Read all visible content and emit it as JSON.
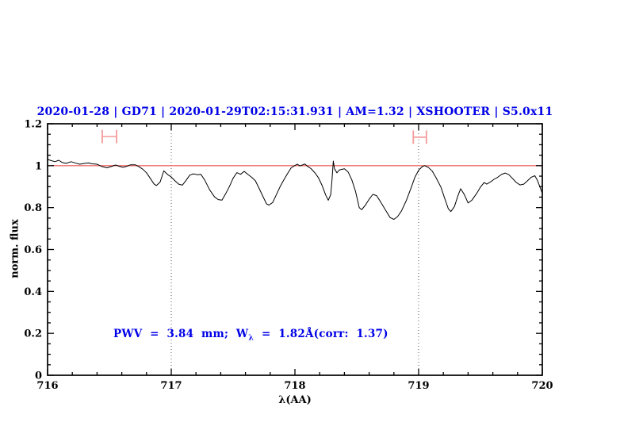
{
  "title": "2020-01-28 | GD71 | 2020-01-29T02:15:31.931 | AM=1.32 | XSHOOTER | S5.0x11",
  "annotation": {
    "prefix": "PWV  =  3.84  mm;  W",
    "sub": "λ",
    "suffix": "  =  1.82Å(corr:  1.37)"
  },
  "colors": {
    "title_blue": "#0000e8",
    "annotation_blue": "#0000e8",
    "continuum_red": "#f26b6b",
    "marker_pink": "#f49a9a",
    "spectrum_black": "#000000",
    "dotted_gray": "#555555"
  },
  "chart_data": {
    "type": "line",
    "title": "2020-01-28 | GD71 | 2020-01-29T02:15:31.931 | AM=1.32 | XSHOOTER | S5.0x11",
    "xlabel": "λ(AA)",
    "ylabel": "norm. flux",
    "xlim": [
      716,
      720
    ],
    "ylim": [
      0,
      1.2
    ],
    "x_ticks": [
      716,
      717,
      718,
      719,
      720
    ],
    "x_tick_labels": [
      "716",
      "717",
      "718",
      "719",
      "720"
    ],
    "y_ticks": [
      0,
      0.2,
      0.4,
      0.6,
      0.8,
      1,
      1.2
    ],
    "y_tick_labels": [
      "0",
      "0.2",
      "0.4",
      "0.6",
      "0.8",
      "1",
      "1.2"
    ],
    "x_minor_step": 0.2,
    "y_minor_step": 0.05,
    "grid": false,
    "legend": null,
    "dotted_vlines": [
      717,
      719
    ],
    "reference_hline": {
      "y": 1.0,
      "color": "#f26b6b"
    },
    "markers": [
      {
        "name": "telluric-range-marker-1",
        "x_center": 716.5,
        "x_halfwidth": 0.058,
        "y": 1.139,
        "cap_halfheight": 0.032,
        "color": "#f49a9a"
      },
      {
        "name": "telluric-range-marker-2",
        "x_center": 719.01,
        "x_halfwidth": 0.053,
        "y": 1.136,
        "cap_halfheight": 0.032,
        "color": "#f49a9a"
      }
    ],
    "annotation": {
      "text": "PWV = 3.84 mm; Wλ = 1.82Å(corr: 1.37)",
      "x": 716.53,
      "y": 0.18,
      "color": "#0000e8"
    },
    "series": [
      {
        "name": "normalized-spectrum",
        "color": "#000000",
        "points": [
          [
            716.0,
            1.03
          ],
          [
            716.03,
            1.024
          ],
          [
            716.06,
            1.019
          ],
          [
            716.09,
            1.026
          ],
          [
            716.12,
            1.015
          ],
          [
            716.15,
            1.011
          ],
          [
            716.19,
            1.019
          ],
          [
            716.23,
            1.012
          ],
          [
            716.26,
            1.007
          ],
          [
            716.3,
            1.011
          ],
          [
            716.33,
            1.013
          ],
          [
            716.36,
            1.009
          ],
          [
            716.4,
            1.007
          ],
          [
            716.44,
            0.996
          ],
          [
            716.48,
            0.99
          ],
          [
            716.52,
            0.997
          ],
          [
            716.55,
            1.003
          ],
          [
            716.58,
            0.997
          ],
          [
            716.61,
            0.992
          ],
          [
            716.64,
            0.997
          ],
          [
            716.67,
            1.004
          ],
          [
            716.71,
            1.004
          ],
          [
            716.74,
            0.995
          ],
          [
            716.77,
            0.983
          ],
          [
            716.8,
            0.966
          ],
          [
            716.83,
            0.94
          ],
          [
            716.86,
            0.913
          ],
          [
            716.88,
            0.905
          ],
          [
            716.91,
            0.922
          ],
          [
            716.94,
            0.975
          ],
          [
            716.97,
            0.958
          ],
          [
            717.0,
            0.946
          ],
          [
            717.03,
            0.928
          ],
          [
            717.06,
            0.912
          ],
          [
            717.09,
            0.907
          ],
          [
            717.12,
            0.93
          ],
          [
            717.15,
            0.955
          ],
          [
            717.18,
            0.961
          ],
          [
            717.21,
            0.957
          ],
          [
            717.24,
            0.959
          ],
          [
            717.27,
            0.932
          ],
          [
            717.31,
            0.885
          ],
          [
            717.35,
            0.851
          ],
          [
            717.38,
            0.838
          ],
          [
            717.41,
            0.836
          ],
          [
            717.44,
            0.866
          ],
          [
            717.47,
            0.9
          ],
          [
            717.5,
            0.94
          ],
          [
            717.53,
            0.967
          ],
          [
            717.56,
            0.959
          ],
          [
            717.59,
            0.973
          ],
          [
            717.62,
            0.958
          ],
          [
            717.65,
            0.945
          ],
          [
            717.68,
            0.928
          ],
          [
            717.71,
            0.892
          ],
          [
            717.74,
            0.855
          ],
          [
            717.77,
            0.818
          ],
          [
            717.79,
            0.812
          ],
          [
            717.82,
            0.824
          ],
          [
            717.85,
            0.862
          ],
          [
            717.88,
            0.9
          ],
          [
            717.91,
            0.932
          ],
          [
            717.94,
            0.962
          ],
          [
            717.97,
            0.99
          ],
          [
            718.0,
            1.001
          ],
          [
            718.02,
            1.007
          ],
          [
            718.04,
            0.999
          ],
          [
            718.06,
            1.003
          ],
          [
            718.08,
            1.008
          ],
          [
            718.1,
            0.998
          ],
          [
            718.13,
            0.986
          ],
          [
            718.16,
            0.967
          ],
          [
            718.19,
            0.943
          ],
          [
            718.22,
            0.905
          ],
          [
            718.25,
            0.858
          ],
          [
            718.27,
            0.835
          ],
          [
            718.29,
            0.863
          ],
          [
            718.3,
            0.935
          ],
          [
            718.31,
            1.022
          ],
          [
            718.32,
            0.985
          ],
          [
            718.34,
            0.966
          ],
          [
            718.36,
            0.98
          ],
          [
            718.4,
            0.985
          ],
          [
            718.43,
            0.97
          ],
          [
            718.46,
            0.932
          ],
          [
            718.49,
            0.878
          ],
          [
            718.52,
            0.8
          ],
          [
            718.54,
            0.79
          ],
          [
            718.57,
            0.812
          ],
          [
            718.6,
            0.84
          ],
          [
            718.63,
            0.863
          ],
          [
            718.66,
            0.857
          ],
          [
            718.69,
            0.83
          ],
          [
            718.73,
            0.79
          ],
          [
            718.77,
            0.752
          ],
          [
            718.8,
            0.744
          ],
          [
            718.83,
            0.757
          ],
          [
            718.86,
            0.783
          ],
          [
            718.9,
            0.833
          ],
          [
            718.94,
            0.895
          ],
          [
            718.97,
            0.945
          ],
          [
            719.0,
            0.978
          ],
          [
            719.03,
            0.996
          ],
          [
            719.05,
            1.0
          ],
          [
            719.08,
            0.991
          ],
          [
            719.11,
            0.974
          ],
          [
            719.14,
            0.944
          ],
          [
            719.18,
            0.898
          ],
          [
            719.21,
            0.845
          ],
          [
            719.24,
            0.795
          ],
          [
            719.26,
            0.781
          ],
          [
            719.29,
            0.805
          ],
          [
            719.32,
            0.86
          ],
          [
            719.34,
            0.89
          ],
          [
            719.37,
            0.862
          ],
          [
            719.4,
            0.822
          ],
          [
            719.43,
            0.835
          ],
          [
            719.47,
            0.868
          ],
          [
            719.5,
            0.898
          ],
          [
            719.53,
            0.92
          ],
          [
            719.55,
            0.912
          ],
          [
            719.58,
            0.922
          ],
          [
            719.61,
            0.935
          ],
          [
            719.64,
            0.945
          ],
          [
            719.67,
            0.958
          ],
          [
            719.7,
            0.965
          ],
          [
            719.73,
            0.957
          ],
          [
            719.76,
            0.938
          ],
          [
            719.79,
            0.92
          ],
          [
            719.82,
            0.908
          ],
          [
            719.85,
            0.912
          ],
          [
            719.88,
            0.928
          ],
          [
            719.91,
            0.945
          ],
          [
            719.94,
            0.952
          ],
          [
            719.96,
            0.93
          ],
          [
            719.98,
            0.9
          ],
          [
            720.0,
            0.868
          ]
        ]
      }
    ]
  }
}
